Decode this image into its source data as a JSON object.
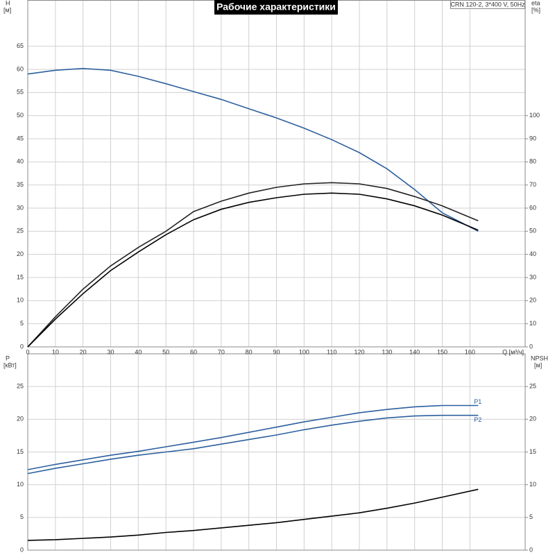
{
  "chart_data": [
    {
      "type": "line",
      "title": "Рабочие характеристики",
      "subtitle": "CRN 120-2, 3*400 V, 50Hz",
      "ylabel": "H",
      "ylabel_unit": "[м]",
      "y2label": "eta",
      "y2label_unit": "[%]",
      "xlabel": "Q [м³/ч]",
      "x": [
        0,
        10,
        20,
        30,
        40,
        50,
        60,
        70,
        80,
        90,
        100,
        110,
        120,
        130,
        140,
        150,
        163
      ],
      "xlim": [
        0,
        180
      ],
      "xticks": [
        0,
        10,
        20,
        30,
        40,
        50,
        60,
        70,
        80,
        90,
        100,
        110,
        120,
        130,
        140,
        150,
        160
      ],
      "ylim": [
        0,
        75
      ],
      "yticks": [
        0,
        5,
        10,
        15,
        20,
        25,
        30,
        35,
        40,
        45,
        50,
        55,
        60,
        65
      ],
      "y2lim": [
        0,
        150
      ],
      "y2ticks": [
        0,
        10,
        20,
        30,
        40,
        50,
        60,
        70,
        80,
        90,
        100
      ],
      "grid": true,
      "series": [
        {
          "color": "#2c5f9e",
          "values": [
            59,
            59.8,
            60.2,
            59.8,
            58.5,
            56.9,
            55.2,
            53.5,
            51.5,
            49.5,
            47.3,
            44.8,
            42,
            38.5,
            34,
            29,
            25
          ]
        },
        {
          "color": "#222222",
          "axis": "y2",
          "values": [
            0,
            13,
            25,
            35,
            43,
            50,
            58.5,
            63,
            66.5,
            69,
            70.5,
            71,
            70.5,
            68.5,
            65,
            61,
            54.5
          ]
        },
        {
          "color": "#000000",
          "axis": "y2",
          "values": [
            0,
            12,
            23,
            33,
            41,
            48.5,
            55,
            59.5,
            62.5,
            64.5,
            66,
            66.5,
            66,
            64,
            61,
            57,
            50.5
          ]
        }
      ]
    },
    {
      "type": "line",
      "ylabel": "P",
      "ylabel_unit": "[кВт]",
      "y2label": "NPSH",
      "y2label_unit": "[м]",
      "x": [
        0,
        10,
        20,
        30,
        40,
        50,
        60,
        70,
        80,
        90,
        100,
        110,
        120,
        130,
        140,
        150,
        163
      ],
      "xlim": [
        0,
        180
      ],
      "xticks": [
        0,
        10,
        20,
        30,
        40,
        50,
        60,
        70,
        80,
        90,
        100,
        110,
        120,
        130,
        140,
        150,
        160
      ],
      "ylim": [
        0,
        30
      ],
      "yticks": [
        0,
        5,
        10,
        15,
        20,
        25
      ],
      "y2lim": [
        0,
        30
      ],
      "y2ticks": [
        0,
        5,
        10,
        15,
        20,
        25
      ],
      "grid": true,
      "series": [
        {
          "name": "P1",
          "color": "#2c5f9e",
          "values": [
            12.3,
            13.1,
            13.8,
            14.5,
            15.1,
            15.8,
            16.5,
            17.2,
            18,
            18.8,
            19.6,
            20.3,
            21,
            21.5,
            21.9,
            22.1,
            22.1
          ]
        },
        {
          "name": "P2",
          "color": "#2c5f9e",
          "values": [
            11.7,
            12.5,
            13.2,
            13.9,
            14.5,
            15,
            15.5,
            16.2,
            16.9,
            17.6,
            18.4,
            19.1,
            19.7,
            20.2,
            20.5,
            20.6,
            20.6
          ]
        },
        {
          "color": "#000000",
          "axis": "y2",
          "values": [
            1.5,
            1.6,
            1.8,
            2,
            2.3,
            2.7,
            3,
            3.4,
            3.8,
            4.2,
            4.7,
            5.2,
            5.7,
            6.4,
            7.2,
            8.1,
            9.3
          ]
        }
      ]
    }
  ]
}
